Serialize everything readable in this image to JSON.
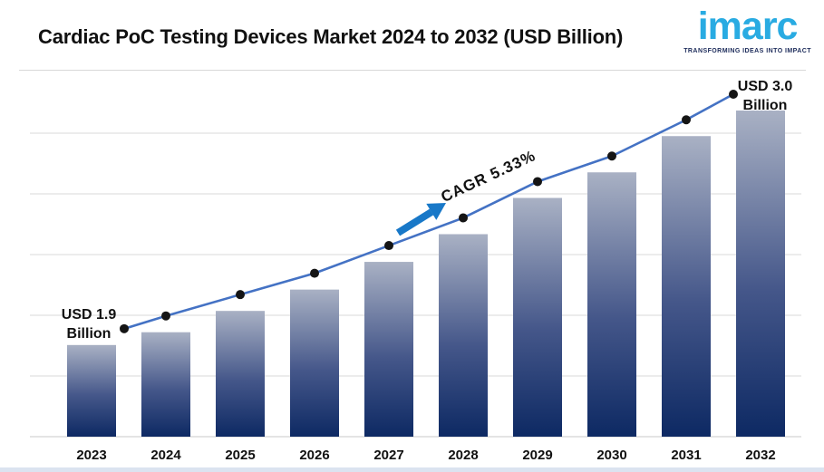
{
  "header": {
    "title": "Cardiac PoC Testing Devices Market 2024 to 2032 (USD Billion)",
    "logo": {
      "text": "imarc",
      "tagline": "TRANSFORMING IDEAS INTO IMPACT"
    }
  },
  "chart_data": {
    "type": "bar",
    "title": "Cardiac PoC Testing Devices Market 2024 to 2032 (USD Billion)",
    "xlabel": "",
    "ylabel": "",
    "categories": [
      "2023",
      "2024",
      "2025",
      "2026",
      "2027",
      "2028",
      "2029",
      "2030",
      "2031",
      "2032"
    ],
    "values": [
      1.9,
      1.96,
      2.06,
      2.16,
      2.29,
      2.42,
      2.59,
      2.71,
      2.88,
      3.0
    ],
    "series": [
      {
        "name": "market-size-bars",
        "type": "bar",
        "values": [
          1.9,
          1.96,
          2.06,
          2.16,
          2.29,
          2.42,
          2.59,
          2.71,
          2.88,
          3.0
        ]
      },
      {
        "name": "trend-line",
        "type": "line",
        "values": [
          1.9,
          1.96,
          2.06,
          2.16,
          2.29,
          2.42,
          2.59,
          2.71,
          2.88,
          3.0
        ]
      }
    ],
    "unit": "USD Billion",
    "ylim": [
      1.47,
      3.0
    ],
    "grid": true,
    "legend": "none",
    "annotations": {
      "start_line1": "USD 1.9",
      "start_line2": "Billion",
      "end_line1": "USD 3.0",
      "end_line2": "Billion",
      "cagr": "CAGR 5.33%"
    },
    "colors": {
      "bar_top": "#a9b1c4",
      "bar_mid": "#45578a",
      "bar_bottom": "#0d2963",
      "line": "#4472c4",
      "dot": "#151515",
      "arrow": "#1878c8",
      "grid": "#d9d9d9",
      "axis": "#c9c9c9",
      "logo": "#29abe2",
      "logo_tagline": "#1c2b5a",
      "strip": "#dbe3f0"
    }
  }
}
